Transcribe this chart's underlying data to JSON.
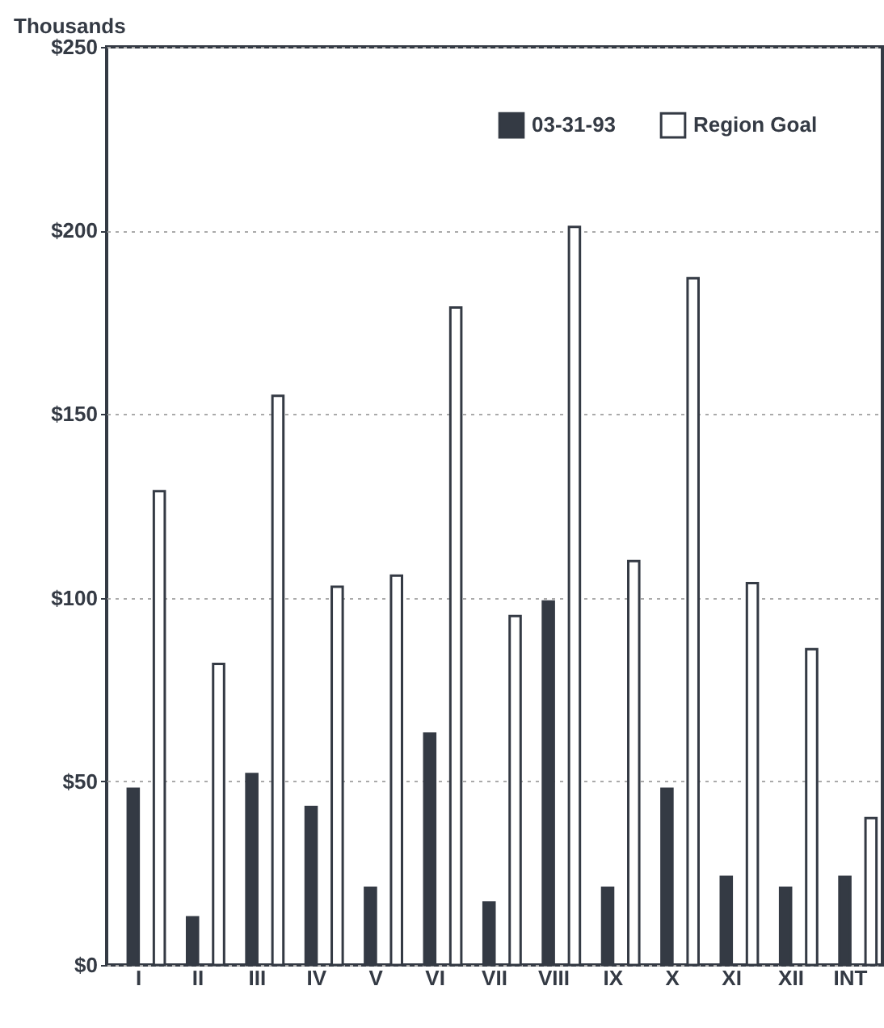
{
  "chart_data": {
    "type": "bar",
    "ylabel": "Thousands",
    "categories": [
      "I",
      "II",
      "III",
      "IV",
      "V",
      "VI",
      "VII",
      "VIII",
      "IX",
      "X",
      "XI",
      "XII",
      "INT"
    ],
    "series": [
      {
        "name": "03-31-93",
        "color": "#343a44",
        "values": [
          48,
          13,
          52,
          43,
          21,
          63,
          17,
          99,
          21,
          48,
          24,
          21,
          24
        ]
      },
      {
        "name": "Region Goal",
        "color": "#ffffff",
        "values": [
          129,
          82,
          155,
          103,
          106,
          179,
          95,
          201,
          110,
          187,
          104,
          86,
          40
        ]
      }
    ],
    "ylim": [
      0,
      250
    ],
    "yticks": [
      {
        "value": 0,
        "label": "$0"
      },
      {
        "value": 50,
        "label": "$50"
      },
      {
        "value": 100,
        "label": "$100"
      },
      {
        "value": 150,
        "label": "$150"
      },
      {
        "value": 200,
        "label": "$200"
      },
      {
        "value": 250,
        "label": "$250"
      }
    ],
    "grid": "y",
    "legend": "top right"
  }
}
